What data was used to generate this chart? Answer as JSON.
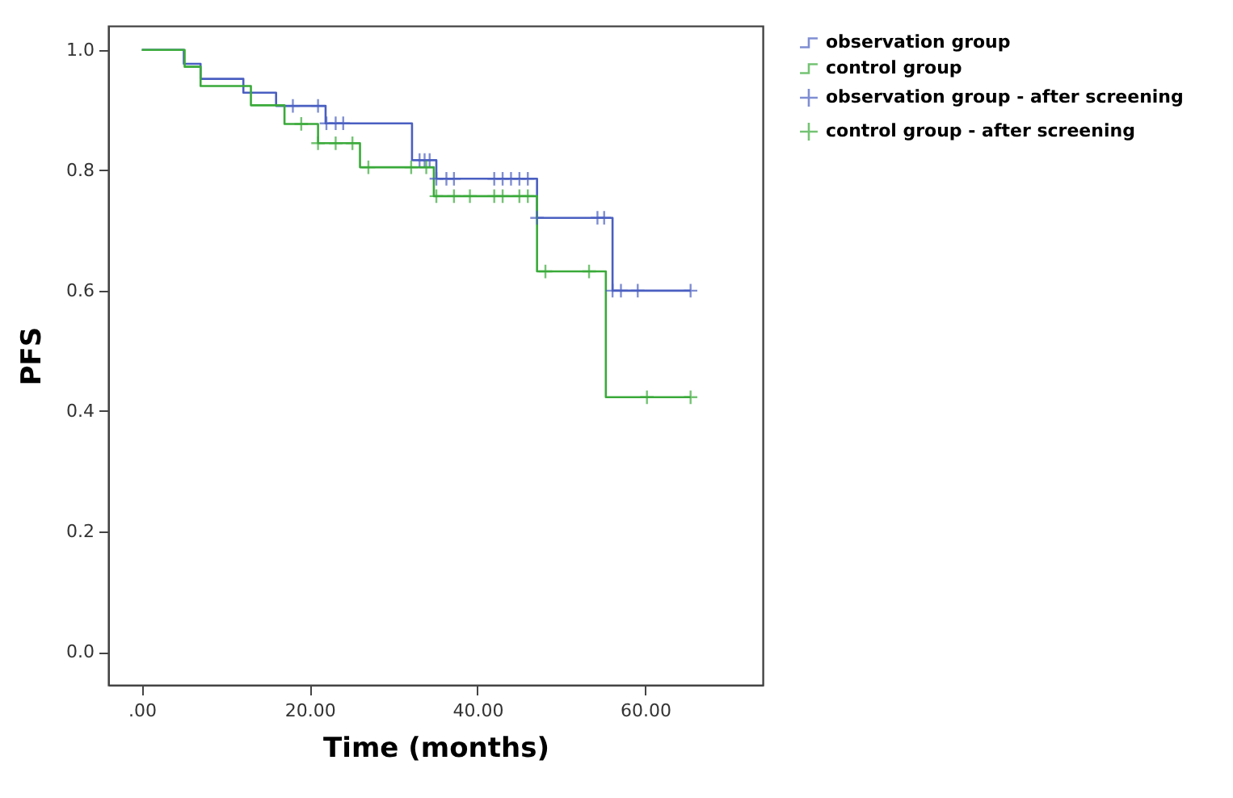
{
  "chart_data": {
    "type": "step",
    "xlabel": "Time (months)",
    "ylabel": "PFS",
    "xlim": [
      -4,
      74
    ],
    "ylim": [
      -0.055,
      1.04
    ],
    "xticks": [
      {
        "value": 0,
        "label": ".00"
      },
      {
        "value": 20,
        "label": "20.00"
      },
      {
        "value": 40,
        "label": "40.00"
      },
      {
        "value": 60,
        "label": "60.00"
      }
    ],
    "yticks": [
      {
        "value": 0,
        "label": "0.0"
      },
      {
        "value": 0.2,
        "label": "0.2"
      },
      {
        "value": 0.4,
        "label": "0.4"
      },
      {
        "value": 0.6,
        "label": "0.6"
      },
      {
        "value": 0.8,
        "label": "0.8"
      },
      {
        "value": 1,
        "label": "1.0"
      }
    ],
    "grid": false,
    "legend": "top right",
    "series": [
      {
        "name": "observation group",
        "color": "#4a5fc1",
        "x": [
          0,
          5,
          7,
          12.1,
          16,
          21.9,
          32.2,
          35.1,
          47.1,
          56.1,
          65.4
        ],
        "values": [
          1,
          0.977,
          0.952,
          0.929,
          0.907,
          0.878,
          0.817,
          0.786,
          0.721,
          0.6,
          0.6
        ]
      },
      {
        "name": "control group",
        "color": "#3aaa3a",
        "x": [
          0,
          5.1,
          7,
          13,
          17,
          21,
          26,
          34.8,
          47.1,
          55.3,
          65.4
        ],
        "values": [
          1,
          0.972,
          0.94,
          0.908,
          0.877,
          0.845,
          0.805,
          0.757,
          0.632,
          0.423,
          0.423
        ]
      },
      {
        "name": "observation group - after screening",
        "type": "scatter",
        "marker": "cross",
        "color": "#4a5fc1",
        "x": [
          18,
          21,
          22,
          23.1,
          24,
          33.1,
          33.7,
          34.3,
          35.1,
          36.3,
          37.2,
          42,
          43,
          44,
          45,
          46,
          47.1,
          54.3,
          55.1,
          56.1,
          57.1,
          59.1,
          65.4
        ],
        "values": [
          0.907,
          0.907,
          0.878,
          0.878,
          0.878,
          0.817,
          0.817,
          0.817,
          0.786,
          0.786,
          0.786,
          0.786,
          0.786,
          0.786,
          0.786,
          0.786,
          0.721,
          0.721,
          0.721,
          0.6,
          0.6,
          0.6,
          0.6
        ]
      },
      {
        "name": "control group - after screening",
        "type": "scatter",
        "marker": "cross",
        "color": "#3aaa3a",
        "x": [
          19,
          21,
          23.1,
          25.1,
          27,
          32.1,
          33.9,
          35.1,
          37.2,
          39.1,
          42,
          43,
          45,
          46,
          48.1,
          53.3,
          60.2,
          65.4
        ],
        "values": [
          0.877,
          0.845,
          0.845,
          0.845,
          0.805,
          0.805,
          0.805,
          0.757,
          0.757,
          0.757,
          0.757,
          0.757,
          0.757,
          0.757,
          0.632,
          0.632,
          0.423,
          0.423
        ]
      }
    ]
  }
}
